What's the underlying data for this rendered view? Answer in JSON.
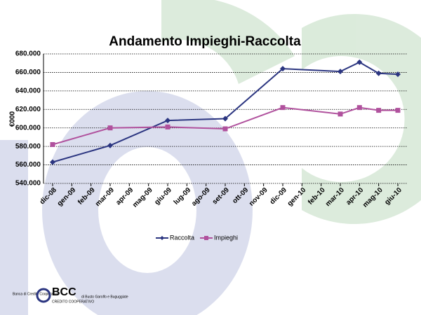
{
  "chart_data": {
    "type": "line",
    "title": "Andamento Impieghi-Raccolta",
    "ylabel": "€000",
    "x": [
      "2008-12",
      "2009-03",
      "2009-06",
      "2009-09",
      "2009-12",
      "2010-03",
      "2010-04",
      "2010-05",
      "2010-06"
    ],
    "series": [
      {
        "name": "Raccolta",
        "color": "#2b3580",
        "marker": "diamond",
        "values": [
          563000,
          581000,
          608000,
          610000,
          664000,
          661000,
          671000,
          659000,
          658000
        ]
      },
      {
        "name": "Impieghi",
        "color": "#b0519d",
        "marker": "square",
        "values": [
          582000,
          600000,
          601000,
          599000,
          622000,
          615000,
          622000,
          619000,
          619000
        ]
      }
    ],
    "xlim": [
      "2008-12",
      "2010-06"
    ],
    "xticks": [
      {
        "value": "2008-12",
        "label": "dic-08"
      },
      {
        "value": "2009-01",
        "label": "gen-09"
      },
      {
        "value": "2009-02",
        "label": "feb-09"
      },
      {
        "value": "2009-03",
        "label": "mar-09"
      },
      {
        "value": "2009-04",
        "label": "apr-09"
      },
      {
        "value": "2009-05",
        "label": "mag-09"
      },
      {
        "value": "2009-06",
        "label": "giu-09"
      },
      {
        "value": "2009-07",
        "label": "lug-09"
      },
      {
        "value": "2009-08",
        "label": "ago-09"
      },
      {
        "value": "2009-09",
        "label": "set-09"
      },
      {
        "value": "2009-10",
        "label": "ott-09"
      },
      {
        "value": "2009-11",
        "label": "nov-09"
      },
      {
        "value": "2009-12",
        "label": "dic-09"
      },
      {
        "value": "2010-01",
        "label": "gen-10"
      },
      {
        "value": "2010-02",
        "label": "feb-10"
      },
      {
        "value": "2010-03",
        "label": "mar-10"
      },
      {
        "value": "2010-04",
        "label": "apr-10"
      },
      {
        "value": "2010-05",
        "label": "mag-10"
      },
      {
        "value": "2010-06",
        "label": "giu-10"
      }
    ],
    "ylim": [
      540000,
      680000
    ],
    "yticks": [
      {
        "value": 540000,
        "label": "540.000"
      },
      {
        "value": 560000,
        "label": "560.000"
      },
      {
        "value": 580000,
        "label": "580.000"
      },
      {
        "value": 600000,
        "label": "600.000"
      },
      {
        "value": 620000,
        "label": "620.000"
      },
      {
        "value": 640000,
        "label": "640.000"
      },
      {
        "value": 660000,
        "label": "660.000"
      },
      {
        "value": 680000,
        "label": "680.000"
      }
    ],
    "grid": true,
    "legend": "bottom"
  },
  "logo": {
    "brand": "BCC",
    "left": "Banca di Credito Cooperativo",
    "sub": "CREDITO COOPERATIVO",
    "right": "di Busto Garolfo e Buguggiate"
  }
}
